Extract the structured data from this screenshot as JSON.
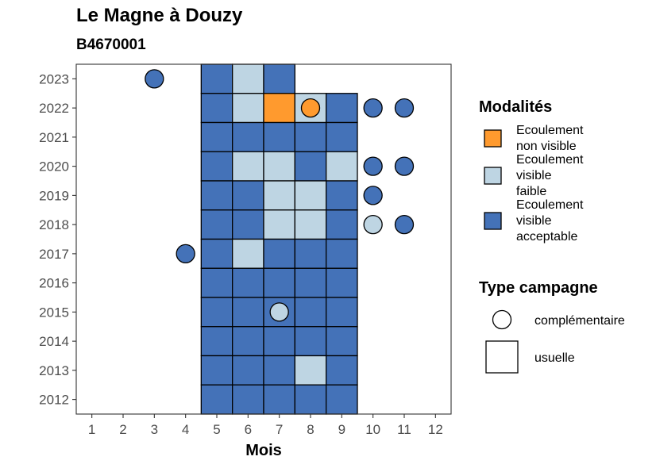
{
  "chart_data": {
    "type": "heatmap",
    "title": "Le Magne à Douzy",
    "subtitle": "B4670001",
    "xlabel": "Mois",
    "ylabel": "",
    "x_ticks": [
      1,
      2,
      3,
      4,
      5,
      6,
      7,
      8,
      9,
      10,
      11,
      12
    ],
    "y_ticks": [
      2012,
      2013,
      2014,
      2015,
      2016,
      2017,
      2018,
      2019,
      2020,
      2021,
      2022,
      2023
    ],
    "xlim": [
      0.5,
      12.5
    ],
    "ylim": [
      2011.5,
      2023.5
    ],
    "legend": {
      "modalites_title": "Modalités",
      "modalites": [
        {
          "key": "nonvisible",
          "label_lines": [
            "Ecoulement",
            "non visible"
          ],
          "color": "#FF9A2E"
        },
        {
          "key": "faible",
          "label_lines": [
            "Ecoulement",
            "visible",
            "faible"
          ],
          "color": "#BED5E3"
        },
        {
          "key": "acceptable",
          "label_lines": [
            "Ecoulement",
            "visible",
            "acceptable"
          ],
          "color": "#4472B8"
        }
      ],
      "type_title": "Type campagne",
      "types": [
        {
          "key": "complementaire",
          "label": "complémentaire",
          "shape": "circle"
        },
        {
          "key": "usuelle",
          "label": "usuelle",
          "shape": "square"
        }
      ]
    },
    "observations": [
      {
        "year": 2023,
        "month": 3,
        "modalite": "acceptable",
        "type": "complementaire"
      },
      {
        "year": 2023,
        "month": 5,
        "modalite": "acceptable",
        "type": "usuelle"
      },
      {
        "year": 2023,
        "month": 6,
        "modalite": "faible",
        "type": "usuelle"
      },
      {
        "year": 2023,
        "month": 7,
        "modalite": "acceptable",
        "type": "usuelle"
      },
      {
        "year": 2022,
        "month": 5,
        "modalite": "acceptable",
        "type": "usuelle"
      },
      {
        "year": 2022,
        "month": 6,
        "modalite": "faible",
        "type": "usuelle"
      },
      {
        "year": 2022,
        "month": 7,
        "modalite": "nonvisible",
        "type": "usuelle"
      },
      {
        "year": 2022,
        "month": 8,
        "modalite": "faible",
        "type": "usuelle"
      },
      {
        "year": 2022,
        "month": 8,
        "modalite": "nonvisible",
        "type": "complementaire"
      },
      {
        "year": 2022,
        "month": 9,
        "modalite": "acceptable",
        "type": "usuelle"
      },
      {
        "year": 2022,
        "month": 10,
        "modalite": "acceptable",
        "type": "complementaire"
      },
      {
        "year": 2022,
        "month": 11,
        "modalite": "acceptable",
        "type": "complementaire"
      },
      {
        "year": 2021,
        "month": 5,
        "modalite": "acceptable",
        "type": "usuelle"
      },
      {
        "year": 2021,
        "month": 6,
        "modalite": "acceptable",
        "type": "usuelle"
      },
      {
        "year": 2021,
        "month": 7,
        "modalite": "acceptable",
        "type": "usuelle"
      },
      {
        "year": 2021,
        "month": 8,
        "modalite": "acceptable",
        "type": "usuelle"
      },
      {
        "year": 2021,
        "month": 9,
        "modalite": "acceptable",
        "type": "usuelle"
      },
      {
        "year": 2020,
        "month": 5,
        "modalite": "acceptable",
        "type": "usuelle"
      },
      {
        "year": 2020,
        "month": 6,
        "modalite": "faible",
        "type": "usuelle"
      },
      {
        "year": 2020,
        "month": 7,
        "modalite": "faible",
        "type": "usuelle"
      },
      {
        "year": 2020,
        "month": 8,
        "modalite": "acceptable",
        "type": "usuelle"
      },
      {
        "year": 2020,
        "month": 9,
        "modalite": "faible",
        "type": "usuelle"
      },
      {
        "year": 2020,
        "month": 10,
        "modalite": "acceptable",
        "type": "complementaire"
      },
      {
        "year": 2020,
        "month": 11,
        "modalite": "acceptable",
        "type": "complementaire"
      },
      {
        "year": 2019,
        "month": 5,
        "modalite": "acceptable",
        "type": "usuelle"
      },
      {
        "year": 2019,
        "month": 6,
        "modalite": "acceptable",
        "type": "usuelle"
      },
      {
        "year": 2019,
        "month": 7,
        "modalite": "faible",
        "type": "usuelle"
      },
      {
        "year": 2019,
        "month": 8,
        "modalite": "faible",
        "type": "usuelle"
      },
      {
        "year": 2019,
        "month": 9,
        "modalite": "acceptable",
        "type": "usuelle"
      },
      {
        "year": 2019,
        "month": 10,
        "modalite": "acceptable",
        "type": "complementaire"
      },
      {
        "year": 2018,
        "month": 5,
        "modalite": "acceptable",
        "type": "usuelle"
      },
      {
        "year": 2018,
        "month": 6,
        "modalite": "acceptable",
        "type": "usuelle"
      },
      {
        "year": 2018,
        "month": 7,
        "modalite": "faible",
        "type": "usuelle"
      },
      {
        "year": 2018,
        "month": 8,
        "modalite": "faible",
        "type": "usuelle"
      },
      {
        "year": 2018,
        "month": 9,
        "modalite": "acceptable",
        "type": "usuelle"
      },
      {
        "year": 2018,
        "month": 10,
        "modalite": "faible",
        "type": "complementaire"
      },
      {
        "year": 2018,
        "month": 11,
        "modalite": "acceptable",
        "type": "complementaire"
      },
      {
        "year": 2017,
        "month": 4,
        "modalite": "acceptable",
        "type": "complementaire"
      },
      {
        "year": 2017,
        "month": 5,
        "modalite": "acceptable",
        "type": "usuelle"
      },
      {
        "year": 2017,
        "month": 6,
        "modalite": "faible",
        "type": "usuelle"
      },
      {
        "year": 2017,
        "month": 7,
        "modalite": "acceptable",
        "type": "usuelle"
      },
      {
        "year": 2017,
        "month": 8,
        "modalite": "acceptable",
        "type": "usuelle"
      },
      {
        "year": 2017,
        "month": 9,
        "modalite": "acceptable",
        "type": "usuelle"
      },
      {
        "year": 2016,
        "month": 5,
        "modalite": "acceptable",
        "type": "usuelle"
      },
      {
        "year": 2016,
        "month": 6,
        "modalite": "acceptable",
        "type": "usuelle"
      },
      {
        "year": 2016,
        "month": 7,
        "modalite": "acceptable",
        "type": "usuelle"
      },
      {
        "year": 2016,
        "month": 8,
        "modalite": "acceptable",
        "type": "usuelle"
      },
      {
        "year": 2016,
        "month": 9,
        "modalite": "acceptable",
        "type": "usuelle"
      },
      {
        "year": 2015,
        "month": 5,
        "modalite": "acceptable",
        "type": "usuelle"
      },
      {
        "year": 2015,
        "month": 6,
        "modalite": "acceptable",
        "type": "usuelle"
      },
      {
        "year": 2015,
        "month": 7,
        "modalite": "acceptable",
        "type": "usuelle"
      },
      {
        "year": 2015,
        "month": 7,
        "modalite": "faible",
        "type": "complementaire"
      },
      {
        "year": 2015,
        "month": 8,
        "modalite": "acceptable",
        "type": "usuelle"
      },
      {
        "year": 2015,
        "month": 9,
        "modalite": "acceptable",
        "type": "usuelle"
      },
      {
        "year": 2014,
        "month": 5,
        "modalite": "acceptable",
        "type": "usuelle"
      },
      {
        "year": 2014,
        "month": 6,
        "modalite": "acceptable",
        "type": "usuelle"
      },
      {
        "year": 2014,
        "month": 7,
        "modalite": "acceptable",
        "type": "usuelle"
      },
      {
        "year": 2014,
        "month": 8,
        "modalite": "acceptable",
        "type": "usuelle"
      },
      {
        "year": 2014,
        "month": 9,
        "modalite": "acceptable",
        "type": "usuelle"
      },
      {
        "year": 2013,
        "month": 5,
        "modalite": "acceptable",
        "type": "usuelle"
      },
      {
        "year": 2013,
        "month": 6,
        "modalite": "acceptable",
        "type": "usuelle"
      },
      {
        "year": 2013,
        "month": 7,
        "modalite": "acceptable",
        "type": "usuelle"
      },
      {
        "year": 2013,
        "month": 8,
        "modalite": "faible",
        "type": "usuelle"
      },
      {
        "year": 2013,
        "month": 9,
        "modalite": "acceptable",
        "type": "usuelle"
      },
      {
        "year": 2012,
        "month": 5,
        "modalite": "acceptable",
        "type": "usuelle"
      },
      {
        "year": 2012,
        "month": 6,
        "modalite": "acceptable",
        "type": "usuelle"
      },
      {
        "year": 2012,
        "month": 7,
        "modalite": "acceptable",
        "type": "usuelle"
      },
      {
        "year": 2012,
        "month": 8,
        "modalite": "acceptable",
        "type": "usuelle"
      },
      {
        "year": 2012,
        "month": 9,
        "modalite": "acceptable",
        "type": "usuelle"
      }
    ]
  }
}
